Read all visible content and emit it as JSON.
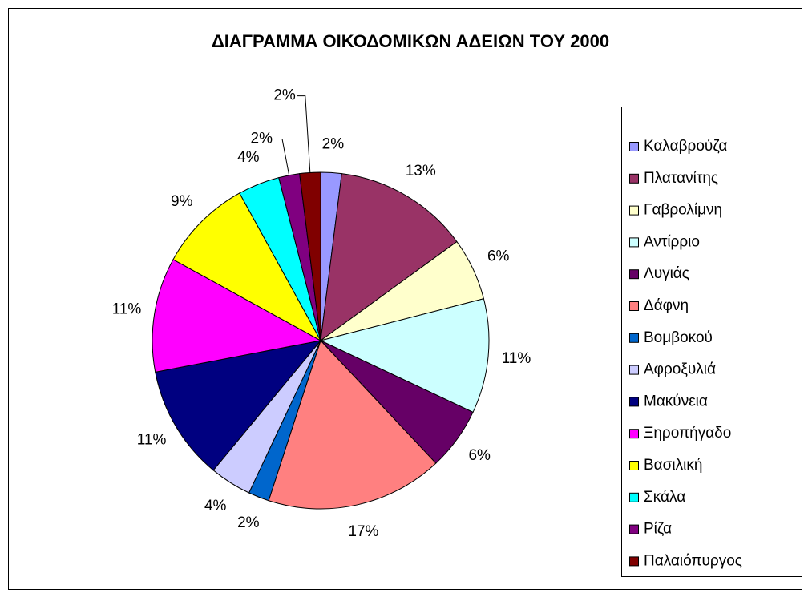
{
  "chart_data": {
    "type": "pie",
    "title": "ΔΙΑΓΡΑΜΜΑ ΟΙΚΟΔΟΜΙΚΩΝ ΑΔΕΙΩΝ ΤΟΥ 2000",
    "categories": [
      "Καλαβρούζα",
      "Πλατανίτης",
      "Γαβρολίμνη",
      "Αντίρριο",
      "Λυγιάς",
      "Δάφνη",
      "Βομβοκού",
      "Αφροξυλιά",
      "Μακύνεια",
      "Ξηροπήγαδο",
      "Βασιλική",
      "Σκάλα",
      "Ρίζα",
      "Παλαιόπυργος"
    ],
    "values": [
      2,
      13,
      6,
      11,
      6,
      17,
      2,
      4,
      11,
      11,
      9,
      4,
      2,
      2
    ],
    "value_labels": [
      "2%",
      "13%",
      "6%",
      "11%",
      "6%",
      "17%",
      "2%",
      "4%",
      "11%",
      "11%",
      "9%",
      "4%",
      "2%",
      "2%"
    ],
    "colors": [
      "#9999ff",
      "#993366",
      "#ffffcc",
      "#ccffff",
      "#660066",
      "#ff8080",
      "#0066cc",
      "#ccccff",
      "#000080",
      "#ff00ff",
      "#ffff00",
      "#00ffff",
      "#800080",
      "#800000"
    ],
    "legend": "right"
  }
}
